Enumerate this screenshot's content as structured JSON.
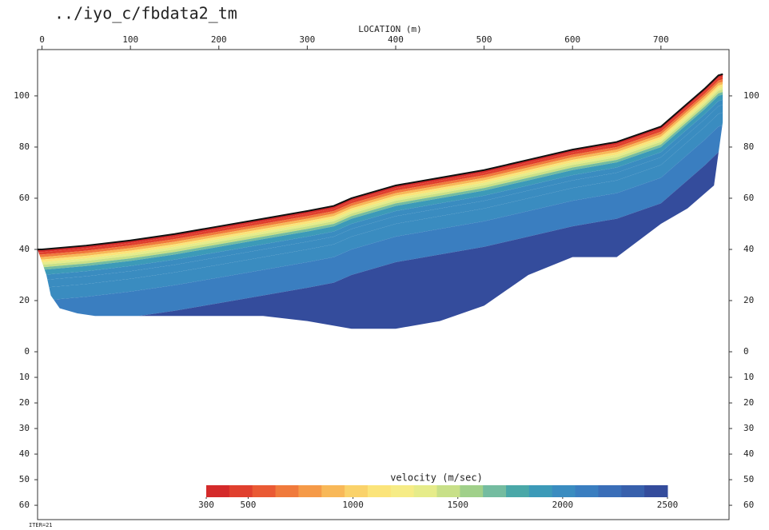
{
  "chart_data": {
    "type": "tomogram",
    "title": "../iyo_c/fbdata2_tm",
    "x_label": "LOCATION (m)",
    "footnote": "ITER=21",
    "xlim": [
      -5,
      777
    ],
    "xticks": [
      0,
      100,
      200,
      300,
      400,
      500,
      600,
      700
    ],
    "ylim": [
      -65.6,
      118.1
    ],
    "yticks": [
      100,
      80,
      60,
      40,
      20,
      0,
      {
        "value": -10,
        "label": "10"
      },
      {
        "value": -20,
        "label": "20"
      },
      {
        "value": -30,
        "label": "30"
      },
      {
        "value": -40,
        "label": "40"
      },
      {
        "value": -50,
        "label": "50"
      },
      {
        "value": -60,
        "label": "60"
      }
    ],
    "surface": {
      "x": [
        -5,
        0,
        50,
        100,
        150,
        200,
        250,
        300,
        330,
        350,
        400,
        450,
        500,
        550,
        600,
        650,
        700,
        730,
        750,
        765,
        770
      ],
      "y": [
        40,
        40,
        41.5,
        43.5,
        46,
        49,
        52,
        55,
        57,
        60,
        65,
        68,
        71,
        75,
        79,
        82,
        88,
        97,
        103,
        108,
        108.5
      ]
    },
    "model_bottom": {
      "x": [
        5,
        10,
        20,
        40,
        60,
        150,
        250,
        300,
        350,
        400,
        450,
        500,
        550,
        600,
        650,
        700,
        730,
        760,
        770
      ],
      "y": [
        30,
        22,
        17,
        15,
        14,
        14,
        14,
        12,
        9,
        9,
        12,
        18,
        30,
        37,
        37,
        50,
        56,
        65,
        90
      ]
    },
    "velocity_profile": {
      "depth": [
        0,
        1,
        2,
        3,
        4,
        5,
        6,
        7,
        8,
        10,
        12,
        15,
        20,
        30
      ],
      "velocity": [
        300,
        500,
        700,
        900,
        1100,
        1300,
        1500,
        1700,
        1850,
        1950,
        2000,
        2050,
        2150,
        2400
      ]
    },
    "colorbar": {
      "label": "velocity (m/sec)",
      "range": [
        300,
        2500
      ],
      "ticks": [
        300,
        500,
        1000,
        1500,
        2000,
        2500
      ],
      "colors": [
        "#d42a2a",
        "#e0402e",
        "#ea5a34",
        "#f07a3c",
        "#f59a48",
        "#f8b858",
        "#fad26a",
        "#fbe47a",
        "#f6ec86",
        "#e6ec8a",
        "#c8e088",
        "#a0d08a",
        "#74bca0",
        "#4aa8a8",
        "#3c9ab8",
        "#3a8cc0",
        "#3a7ec0",
        "#3a6eb8",
        "#3860ac",
        "#344c9c"
      ]
    }
  }
}
